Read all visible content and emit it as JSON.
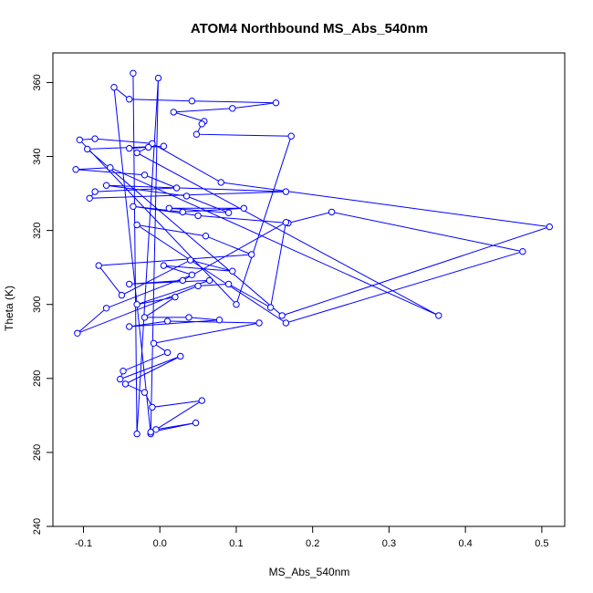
{
  "chart_data": {
    "type": "scatter",
    "title": "ATOM4 Northbound MS_Abs_540nm",
    "xlabel": "MS_Abs_540nm",
    "ylabel": "Theta (K)",
    "xlim": [
      -0.14,
      0.53
    ],
    "ylim": [
      240,
      368
    ],
    "xticks": [
      "-0.1",
      "0.0",
      "0.1",
      "0.2",
      "0.3",
      "0.4",
      "0.5"
    ],
    "yticks": [
      "240",
      "260",
      "280",
      "300",
      "320",
      "340",
      "360"
    ],
    "x_tick_values": [
      -0.1,
      0.0,
      0.1,
      0.2,
      0.3,
      0.4,
      0.5
    ],
    "y_tick_values": [
      240,
      260,
      280,
      300,
      320,
      340,
      360
    ],
    "grid": false,
    "mode": "lines+markers",
    "colors": {
      "series": "#0000ff",
      "axis": "#000000"
    },
    "series": [
      {
        "points": [
          [
            -0.035,
            362.5
          ],
          [
            -0.03,
            265
          ],
          [
            -0.002,
            361.2
          ],
          [
            -0.012,
            265
          ],
          [
            -0.06,
            358.7
          ],
          [
            -0.04,
            355.5
          ],
          [
            0.042,
            355
          ],
          [
            0.152,
            354.5
          ],
          [
            0.095,
            353
          ],
          [
            0.018,
            352
          ],
          [
            0.058,
            349.5
          ],
          [
            0.055,
            348.8
          ],
          [
            0.048,
            346
          ],
          [
            0.172,
            345.5
          ],
          [
            0.1,
            300
          ],
          [
            -0.105,
            344.5
          ],
          [
            -0.085,
            344.8
          ],
          [
            -0.01,
            343.5
          ],
          [
            0.08,
            333
          ],
          [
            0.51,
            321
          ],
          [
            0.16,
            297
          ],
          [
            -0.095,
            342
          ],
          [
            0.005,
            342.8
          ],
          [
            -0.04,
            342.2
          ],
          [
            -0.015,
            342.5
          ],
          [
            -0.03,
            341
          ],
          [
            0.365,
            297
          ],
          [
            -0.065,
            337
          ],
          [
            -0.11,
            336.5
          ],
          [
            -0.02,
            335
          ],
          [
            0.022,
            331.5
          ],
          [
            -0.085,
            330.5
          ],
          [
            -0.092,
            328.7
          ],
          [
            0.165,
            330.5
          ],
          [
            -0.07,
            332.2
          ],
          [
            0.035,
            329.3
          ],
          [
            0.09,
            324.8
          ],
          [
            0.012,
            326
          ],
          [
            0.11,
            326
          ],
          [
            0.03,
            325
          ],
          [
            -0.035,
            326.5
          ],
          [
            0.05,
            324
          ],
          [
            0.168,
            322
          ],
          [
            0.225,
            325
          ],
          [
            0.475,
            314.3
          ],
          [
            0.165,
            295
          ],
          [
            -0.03,
            321.5
          ],
          [
            0.06,
            318.5
          ],
          [
            0.12,
            313.5
          ],
          [
            -0.08,
            310.5
          ],
          [
            -0.05,
            302.5
          ],
          [
            0.04,
            312
          ],
          [
            0.095,
            309
          ],
          [
            0.005,
            310.5
          ],
          [
            0.042,
            308
          ],
          [
            -0.07,
            299
          ],
          [
            -0.108,
            292.2
          ],
          [
            0.05,
            305
          ],
          [
            0.09,
            305.5
          ],
          [
            0.145,
            299.2
          ],
          [
            0.165,
            322.2
          ],
          [
            0.03,
            306.5
          ],
          [
            -0.04,
            305.5
          ],
          [
            0.065,
            306.5
          ],
          [
            -0.03,
            300
          ],
          [
            0.02,
            302
          ],
          [
            -0.02,
            296.5
          ],
          [
            0.038,
            296.5
          ],
          [
            0.078,
            295.8
          ],
          [
            -0.04,
            294
          ],
          [
            0.01,
            295.5
          ],
          [
            0.13,
            295
          ],
          [
            -0.008,
            289.5
          ],
          [
            0.01,
            287
          ],
          [
            -0.048,
            282
          ],
          [
            -0.052,
            279.8
          ],
          [
            0.027,
            286
          ],
          [
            -0.045,
            278.5
          ],
          [
            -0.02,
            276.2
          ],
          [
            -0.01,
            272.2
          ],
          [
            0.055,
            274
          ],
          [
            -0.005,
            266.2
          ],
          [
            0.047,
            268
          ],
          [
            -0.012,
            265.5
          ]
        ]
      }
    ]
  }
}
